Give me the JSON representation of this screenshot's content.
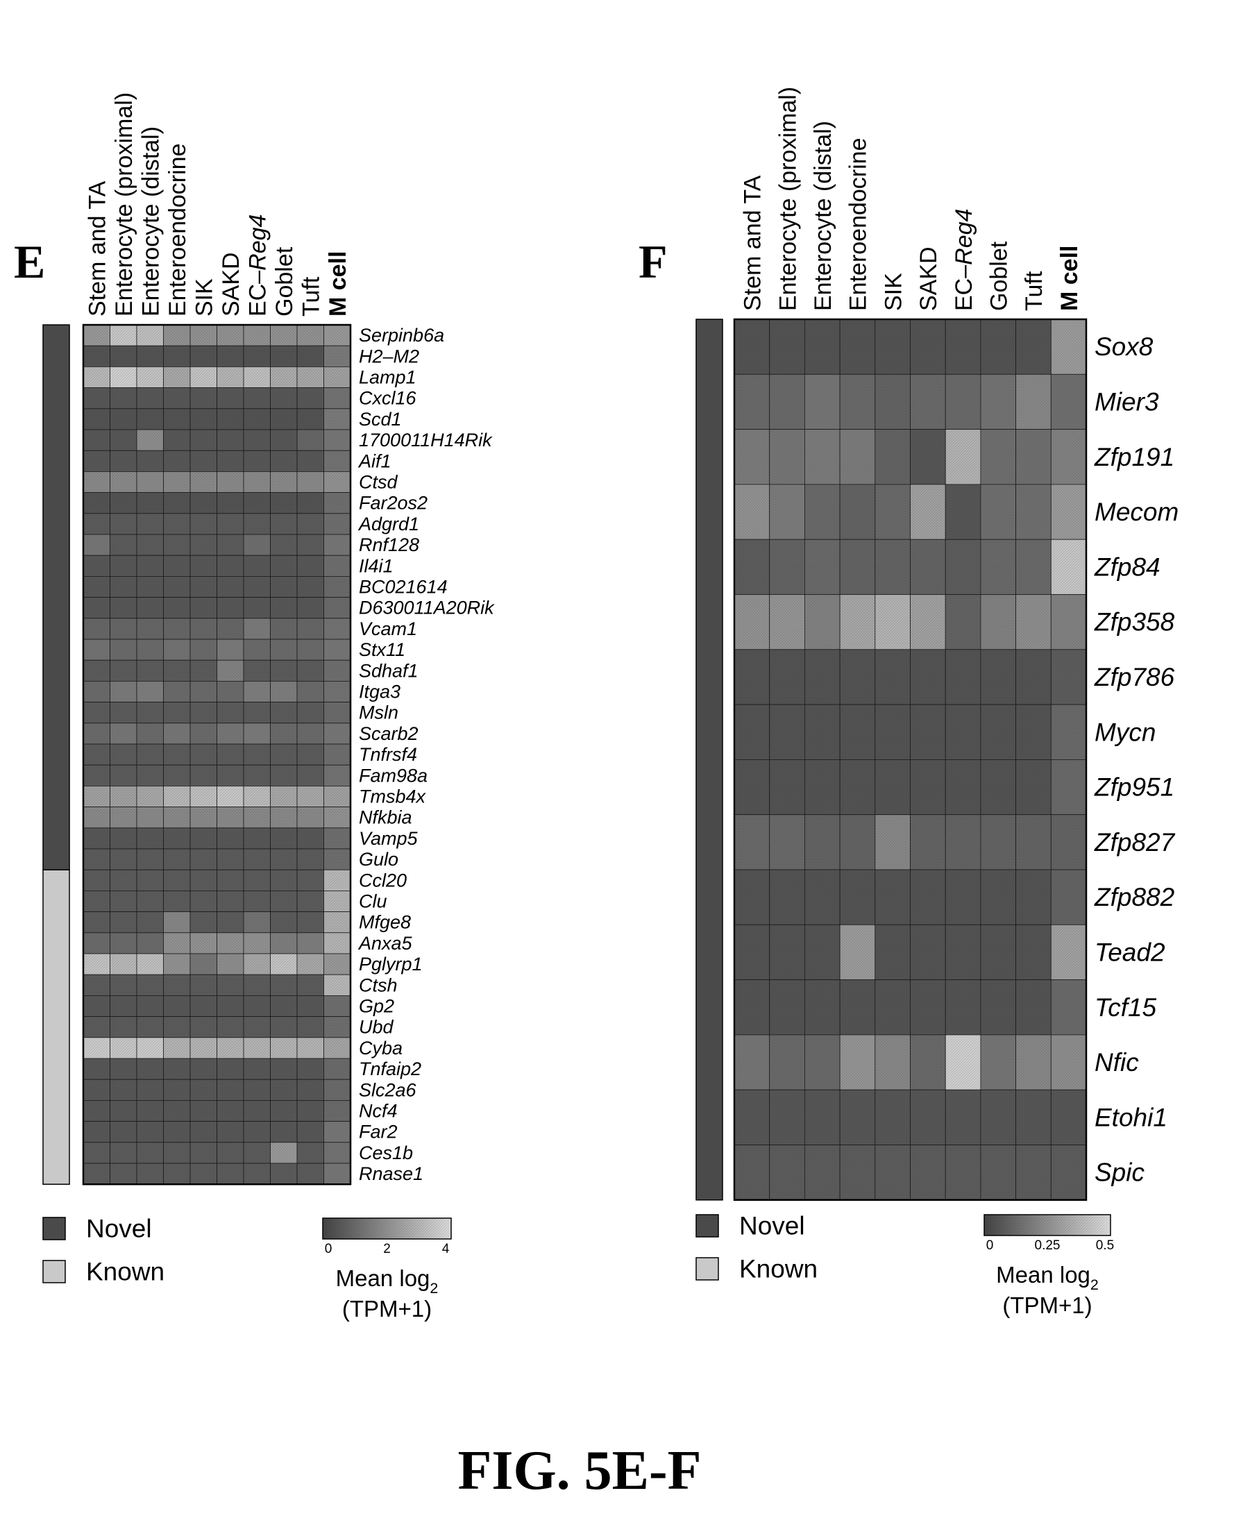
{
  "figure_caption": "FIG. 5E-F",
  "chart_data": [
    {
      "type": "heatmap",
      "panel": "E",
      "columns": [
        "Stem and TA",
        "Enterocyte (proximal)",
        "Enterocyte (distal)",
        "Enteroendocrine",
        "SIK",
        "SAKD",
        "EC–",
        "Goblet",
        "Tuft",
        "M cell"
      ],
      "column_suffix_italic": {
        "6": "Reg4"
      },
      "bold_column": 9,
      "rows": [
        "Serpinb6a",
        "H2–M2",
        "Lamp1",
        "Cxcl16",
        "Scd1",
        "1700011H14Rik",
        "Aif1",
        "Ctsd",
        "Far2os2",
        "Adgrd1",
        "Rnf128",
        "Il4i1",
        "BC021614",
        "D630011A20Rik",
        "Vcam1",
        "Stx11",
        "Sdhaf1",
        "Itga3",
        "Msln",
        "Scarb2",
        "Tnfrsf4",
        "Fam98a",
        "Tmsb4x",
        "Nfkbia",
        "Vamp5",
        "Gulo",
        "Ccl20",
        "Clu",
        "Mfge8",
        "Anxa5",
        "Pglyrp1",
        "Ctsh",
        "Gp2",
        "Ubd",
        "Cyba",
        "Tnfaip2",
        "Slc2a6",
        "Ncf4",
        "Far2",
        "Ces1b",
        "Rnase1"
      ],
      "row_status": [
        "Novel",
        "Novel",
        "Novel",
        "Novel",
        "Novel",
        "Novel",
        "Novel",
        "Novel",
        "Novel",
        "Novel",
        "Novel",
        "Novel",
        "Novel",
        "Novel",
        "Novel",
        "Novel",
        "Novel",
        "Novel",
        "Novel",
        "Novel",
        "Novel",
        "Novel",
        "Novel",
        "Novel",
        "Novel",
        "Novel",
        "Known",
        "Known",
        "Known",
        "Known",
        "Known",
        "Known",
        "Known",
        "Known",
        "Known",
        "Known",
        "Known",
        "Known",
        "Known",
        "Known",
        "Known"
      ],
      "values": [
        [
          2.2,
          3.4,
          3.2,
          2,
          2,
          2,
          2,
          2,
          2,
          2.2
        ],
        [
          0.4,
          0.4,
          0.4,
          0.4,
          0.4,
          0.4,
          0.4,
          0.4,
          0.4,
          1.4
        ],
        [
          3,
          3.6,
          3.3,
          2.6,
          3.3,
          2.9,
          3.2,
          2.7,
          2.6,
          2.4
        ],
        [
          0.5,
          0.5,
          0.5,
          0.5,
          0.5,
          0.5,
          0.5,
          0.5,
          0.5,
          1.2
        ],
        [
          0.4,
          0.4,
          0.4,
          0.4,
          0.4,
          0.4,
          0.4,
          0.4,
          0.4,
          1.4
        ],
        [
          0.5,
          0.5,
          1.9,
          0.5,
          0.5,
          0.5,
          0.5,
          0.5,
          0.9,
          1.3
        ],
        [
          0.5,
          0.5,
          0.5,
          0.5,
          0.5,
          0.5,
          0.5,
          0.5,
          0.5,
          1.2
        ],
        [
          1.8,
          1.8,
          1.8,
          1.8,
          1.8,
          1.8,
          1.8,
          1.8,
          1.8,
          2
        ],
        [
          0.4,
          0.4,
          0.4,
          0.4,
          0.4,
          0.4,
          0.4,
          0.4,
          0.4,
          1.1
        ],
        [
          0.6,
          0.6,
          0.6,
          0.6,
          0.6,
          0.6,
          0.6,
          0.6,
          0.6,
          1.1
        ],
        [
          1.3,
          0.6,
          0.6,
          0.6,
          0.6,
          0.6,
          1.1,
          0.6,
          0.6,
          1.3
        ],
        [
          0.5,
          0.5,
          0.5,
          0.5,
          0.5,
          0.5,
          0.5,
          0.5,
          0.5,
          1.1
        ],
        [
          0.5,
          0.5,
          0.5,
          0.5,
          0.5,
          0.5,
          0.5,
          0.5,
          0.5,
          1
        ],
        [
          0.5,
          0.5,
          0.5,
          0.5,
          0.5,
          0.5,
          0.5,
          0.5,
          0.5,
          1
        ],
        [
          0.9,
          0.9,
          0.9,
          0.9,
          0.9,
          0.9,
          1.4,
          0.9,
          0.9,
          1.2
        ],
        [
          1.2,
          1,
          1,
          1.2,
          1,
          1.4,
          1,
          1,
          1,
          1.3
        ],
        [
          0.6,
          0.6,
          0.6,
          0.6,
          0.6,
          1.6,
          0.6,
          0.6,
          0.6,
          1.1
        ],
        [
          1,
          1.4,
          1.5,
          1,
          1,
          1,
          1.5,
          1.5,
          1,
          1.2
        ],
        [
          0.6,
          0.6,
          0.6,
          0.6,
          0.6,
          0.6,
          0.6,
          0.6,
          0.6,
          1
        ],
        [
          1,
          1.3,
          1,
          1.3,
          1,
          1.3,
          1.4,
          1,
          1,
          1.3
        ],
        [
          0.6,
          0.6,
          0.6,
          0.6,
          0.6,
          0.6,
          0.6,
          0.6,
          0.6,
          1.1
        ],
        [
          0.6,
          0.6,
          0.6,
          0.6,
          0.6,
          0.6,
          0.6,
          0.6,
          0.6,
          1.2
        ],
        [
          2.4,
          2.4,
          2.6,
          3,
          3.2,
          3.4,
          3.1,
          2.6,
          2.6,
          2.4
        ],
        [
          1.8,
          1.8,
          1.8,
          1.8,
          1.8,
          1.8,
          1.8,
          1.8,
          1.8,
          2
        ],
        [
          0.5,
          0.5,
          0.5,
          0.5,
          0.5,
          0.5,
          0.5,
          0.5,
          0.5,
          1.1
        ],
        [
          0.6,
          0.6,
          0.6,
          0.6,
          0.6,
          0.6,
          0.6,
          0.6,
          0.6,
          1.1
        ],
        [
          0.6,
          0.6,
          0.6,
          0.6,
          0.6,
          0.6,
          0.6,
          0.6,
          0.6,
          3
        ],
        [
          0.6,
          0.6,
          0.6,
          0.6,
          0.6,
          0.6,
          0.6,
          0.6,
          0.6,
          2.9
        ],
        [
          0.6,
          0.6,
          0.6,
          1.7,
          0.6,
          0.6,
          1.2,
          0.6,
          0.6,
          2.8
        ],
        [
          1,
          1,
          1,
          2,
          2,
          2,
          2,
          1.5,
          1.5,
          2.9
        ],
        [
          3.3,
          3,
          3.2,
          2,
          1.3,
          1.9,
          2.6,
          3.3,
          2.6,
          2.2
        ],
        [
          0.6,
          0.6,
          0.6,
          0.6,
          0.6,
          0.6,
          0.6,
          0.6,
          0.6,
          3
        ],
        [
          0.5,
          0.5,
          0.5,
          0.5,
          0.5,
          0.5,
          0.5,
          0.5,
          0.5,
          1.1
        ],
        [
          0.6,
          0.6,
          0.6,
          0.6,
          0.6,
          0.6,
          0.6,
          0.6,
          0.6,
          1.1
        ],
        [
          3.5,
          3.4,
          3.5,
          2.9,
          2.9,
          2.9,
          2.9,
          2.9,
          2.9,
          2.5
        ],
        [
          0.5,
          0.5,
          0.5,
          0.5,
          0.5,
          0.5,
          0.5,
          0.5,
          0.5,
          1
        ],
        [
          0.5,
          0.5,
          0.5,
          0.5,
          0.5,
          0.5,
          0.5,
          0.5,
          0.5,
          1
        ],
        [
          0.5,
          0.5,
          0.5,
          0.5,
          0.5,
          0.5,
          0.5,
          0.5,
          0.5,
          1
        ],
        [
          0.5,
          0.5,
          0.5,
          0.5,
          0.5,
          0.5,
          0.5,
          0.5,
          0.5,
          1.3
        ],
        [
          0.6,
          0.6,
          0.6,
          0.6,
          0.6,
          0.6,
          0.6,
          2.2,
          0.6,
          1.2
        ],
        [
          0.6,
          0.6,
          0.6,
          0.6,
          0.6,
          0.6,
          0.6,
          0.6,
          0.6,
          1.3
        ]
      ],
      "color_range": [
        0,
        4
      ],
      "colorbar_ticks": [
        "0",
        "2",
        "4"
      ],
      "colorbar_label_line1": "Mean log",
      "colorbar_label_sub": "2",
      "colorbar_label_line2": "(TPM+1)",
      "legend": [
        {
          "label": "Novel",
          "color": "#4a4a4a"
        },
        {
          "label": "Known",
          "color": "#c9c9c9"
        }
      ]
    },
    {
      "type": "heatmap",
      "panel": "F",
      "columns": [
        "Stem and TA",
        "Enterocyte (proximal)",
        "Enterocyte (distal)",
        "Enteroendocrine",
        "SIK",
        "SAKD",
        "EC–",
        "Goblet",
        "Tuft",
        "M cell"
      ],
      "column_suffix_italic": {
        "6": "Reg4"
      },
      "bold_column": 9,
      "rows": [
        "Sox8",
        "Mier3",
        "Zfp191",
        "Mecom",
        "Zfp84",
        "Zfp358",
        "Zfp786",
        "Mycn",
        "Zfp951",
        "Zfp827",
        "Zfp882",
        "Tead2",
        "Tcf15",
        "Nfic",
        "Etohi1",
        "Spic"
      ],
      "row_status": [
        "Novel",
        "Novel",
        "Novel",
        "Novel",
        "Novel",
        "Novel",
        "Novel",
        "Novel",
        "Novel",
        "Novel",
        "Novel",
        "Novel",
        "Novel",
        "Novel",
        "Novel",
        "Novel"
      ],
      "values": [
        [
          0.05,
          0.05,
          0.05,
          0.05,
          0.05,
          0.05,
          0.05,
          0.05,
          0.05,
          0.28
        ],
        [
          0.12,
          0.12,
          0.16,
          0.12,
          0.1,
          0.12,
          0.12,
          0.15,
          0.22,
          0.14
        ],
        [
          0.18,
          0.16,
          0.18,
          0.18,
          0.1,
          0.06,
          0.36,
          0.14,
          0.14,
          0.2
        ],
        [
          0.25,
          0.18,
          0.12,
          0.1,
          0.12,
          0.3,
          0.06,
          0.14,
          0.14,
          0.28
        ],
        [
          0.08,
          0.1,
          0.12,
          0.1,
          0.1,
          0.1,
          0.08,
          0.12,
          0.12,
          0.42
        ],
        [
          0.25,
          0.26,
          0.2,
          0.32,
          0.36,
          0.3,
          0.1,
          0.2,
          0.24,
          0.2
        ],
        [
          0.05,
          0.05,
          0.05,
          0.05,
          0.05,
          0.05,
          0.05,
          0.05,
          0.05,
          0.08
        ],
        [
          0.05,
          0.05,
          0.05,
          0.05,
          0.05,
          0.05,
          0.05,
          0.05,
          0.05,
          0.12
        ],
        [
          0.05,
          0.05,
          0.05,
          0.05,
          0.05,
          0.05,
          0.05,
          0.05,
          0.05,
          0.12
        ],
        [
          0.12,
          0.12,
          0.1,
          0.1,
          0.22,
          0.1,
          0.1,
          0.1,
          0.1,
          0.1
        ],
        [
          0.05,
          0.05,
          0.05,
          0.05,
          0.05,
          0.05,
          0.05,
          0.05,
          0.05,
          0.1
        ],
        [
          0.05,
          0.05,
          0.05,
          0.28,
          0.05,
          0.05,
          0.05,
          0.05,
          0.05,
          0.3
        ],
        [
          0.05,
          0.05,
          0.05,
          0.05,
          0.05,
          0.05,
          0.05,
          0.05,
          0.05,
          0.12
        ],
        [
          0.16,
          0.12,
          0.12,
          0.26,
          0.22,
          0.12,
          0.45,
          0.16,
          0.22,
          0.24
        ],
        [
          0.06,
          0.06,
          0.06,
          0.06,
          0.06,
          0.06,
          0.06,
          0.06,
          0.06,
          0.06
        ],
        [
          0.08,
          0.08,
          0.08,
          0.08,
          0.08,
          0.08,
          0.08,
          0.08,
          0.08,
          0.08
        ]
      ],
      "color_range": [
        0,
        0.5
      ],
      "colorbar_ticks": [
        "0",
        "0.25",
        "0.5"
      ],
      "colorbar_label_line1": "Mean log",
      "colorbar_label_sub": "2",
      "colorbar_label_line2": "(TPM+1)",
      "legend": [
        {
          "label": "Novel",
          "color": "#4a4a4a"
        },
        {
          "label": "Known",
          "color": "#c9c9c9"
        }
      ]
    }
  ]
}
